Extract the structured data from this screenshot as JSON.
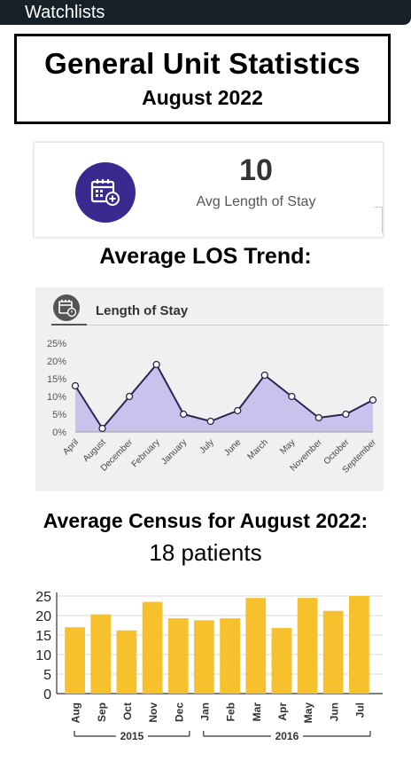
{
  "header": {
    "title": "Watchlists"
  },
  "report": {
    "title": "General Unit Statistics",
    "period": "August 2022"
  },
  "stat_card": {
    "value": "10",
    "label": "Avg Length of Stay",
    "icon": "calendar-plus-icon"
  },
  "trend_heading": "Average LOS Trend:",
  "los_chart_title": "Length of Stay",
  "census": {
    "heading": "Average Census for August 2022:",
    "value": "18 patients"
  },
  "colors": {
    "header_bg": "#152028",
    "icon_circle": "#3a2a8f",
    "area_fill": "#c9c2ec",
    "line": "#2b2350",
    "bar": "#f7c12e"
  },
  "chart_data": [
    {
      "type": "area",
      "title": "Length of Stay",
      "categories": [
        "April",
        "August",
        "December",
        "February",
        "January",
        "July",
        "June",
        "March",
        "May",
        "November",
        "October",
        "September"
      ],
      "series": [
        {
          "values": [
            13,
            1,
            10,
            19,
            5,
            3,
            6,
            16,
            10,
            4,
            5,
            9
          ]
        }
      ],
      "y_ticks": [
        "0%",
        "5%",
        "10%",
        "15%",
        "20%",
        "25%"
      ],
      "ylim": [
        0,
        25
      ],
      "unit": "%",
      "grid": false
    },
    {
      "type": "bar",
      "categories": [
        "Aug",
        "Sep",
        "Oct",
        "Nov",
        "Dec",
        "Jan",
        "Feb",
        "Mar",
        "Apr",
        "May",
        "Jun",
        "Jul"
      ],
      "values": [
        17,
        20.3,
        16.2,
        23.5,
        19.3,
        18.8,
        19.3,
        24.5,
        16.8,
        24.5,
        21.2,
        25
      ],
      "groups": [
        {
          "label": "2015",
          "count": 5
        },
        {
          "label": "2016",
          "count": 7
        }
      ],
      "y_ticks": [
        "0",
        "5",
        "10",
        "15",
        "20",
        "25"
      ],
      "ylim": [
        0,
        25
      ],
      "grid": true
    }
  ]
}
